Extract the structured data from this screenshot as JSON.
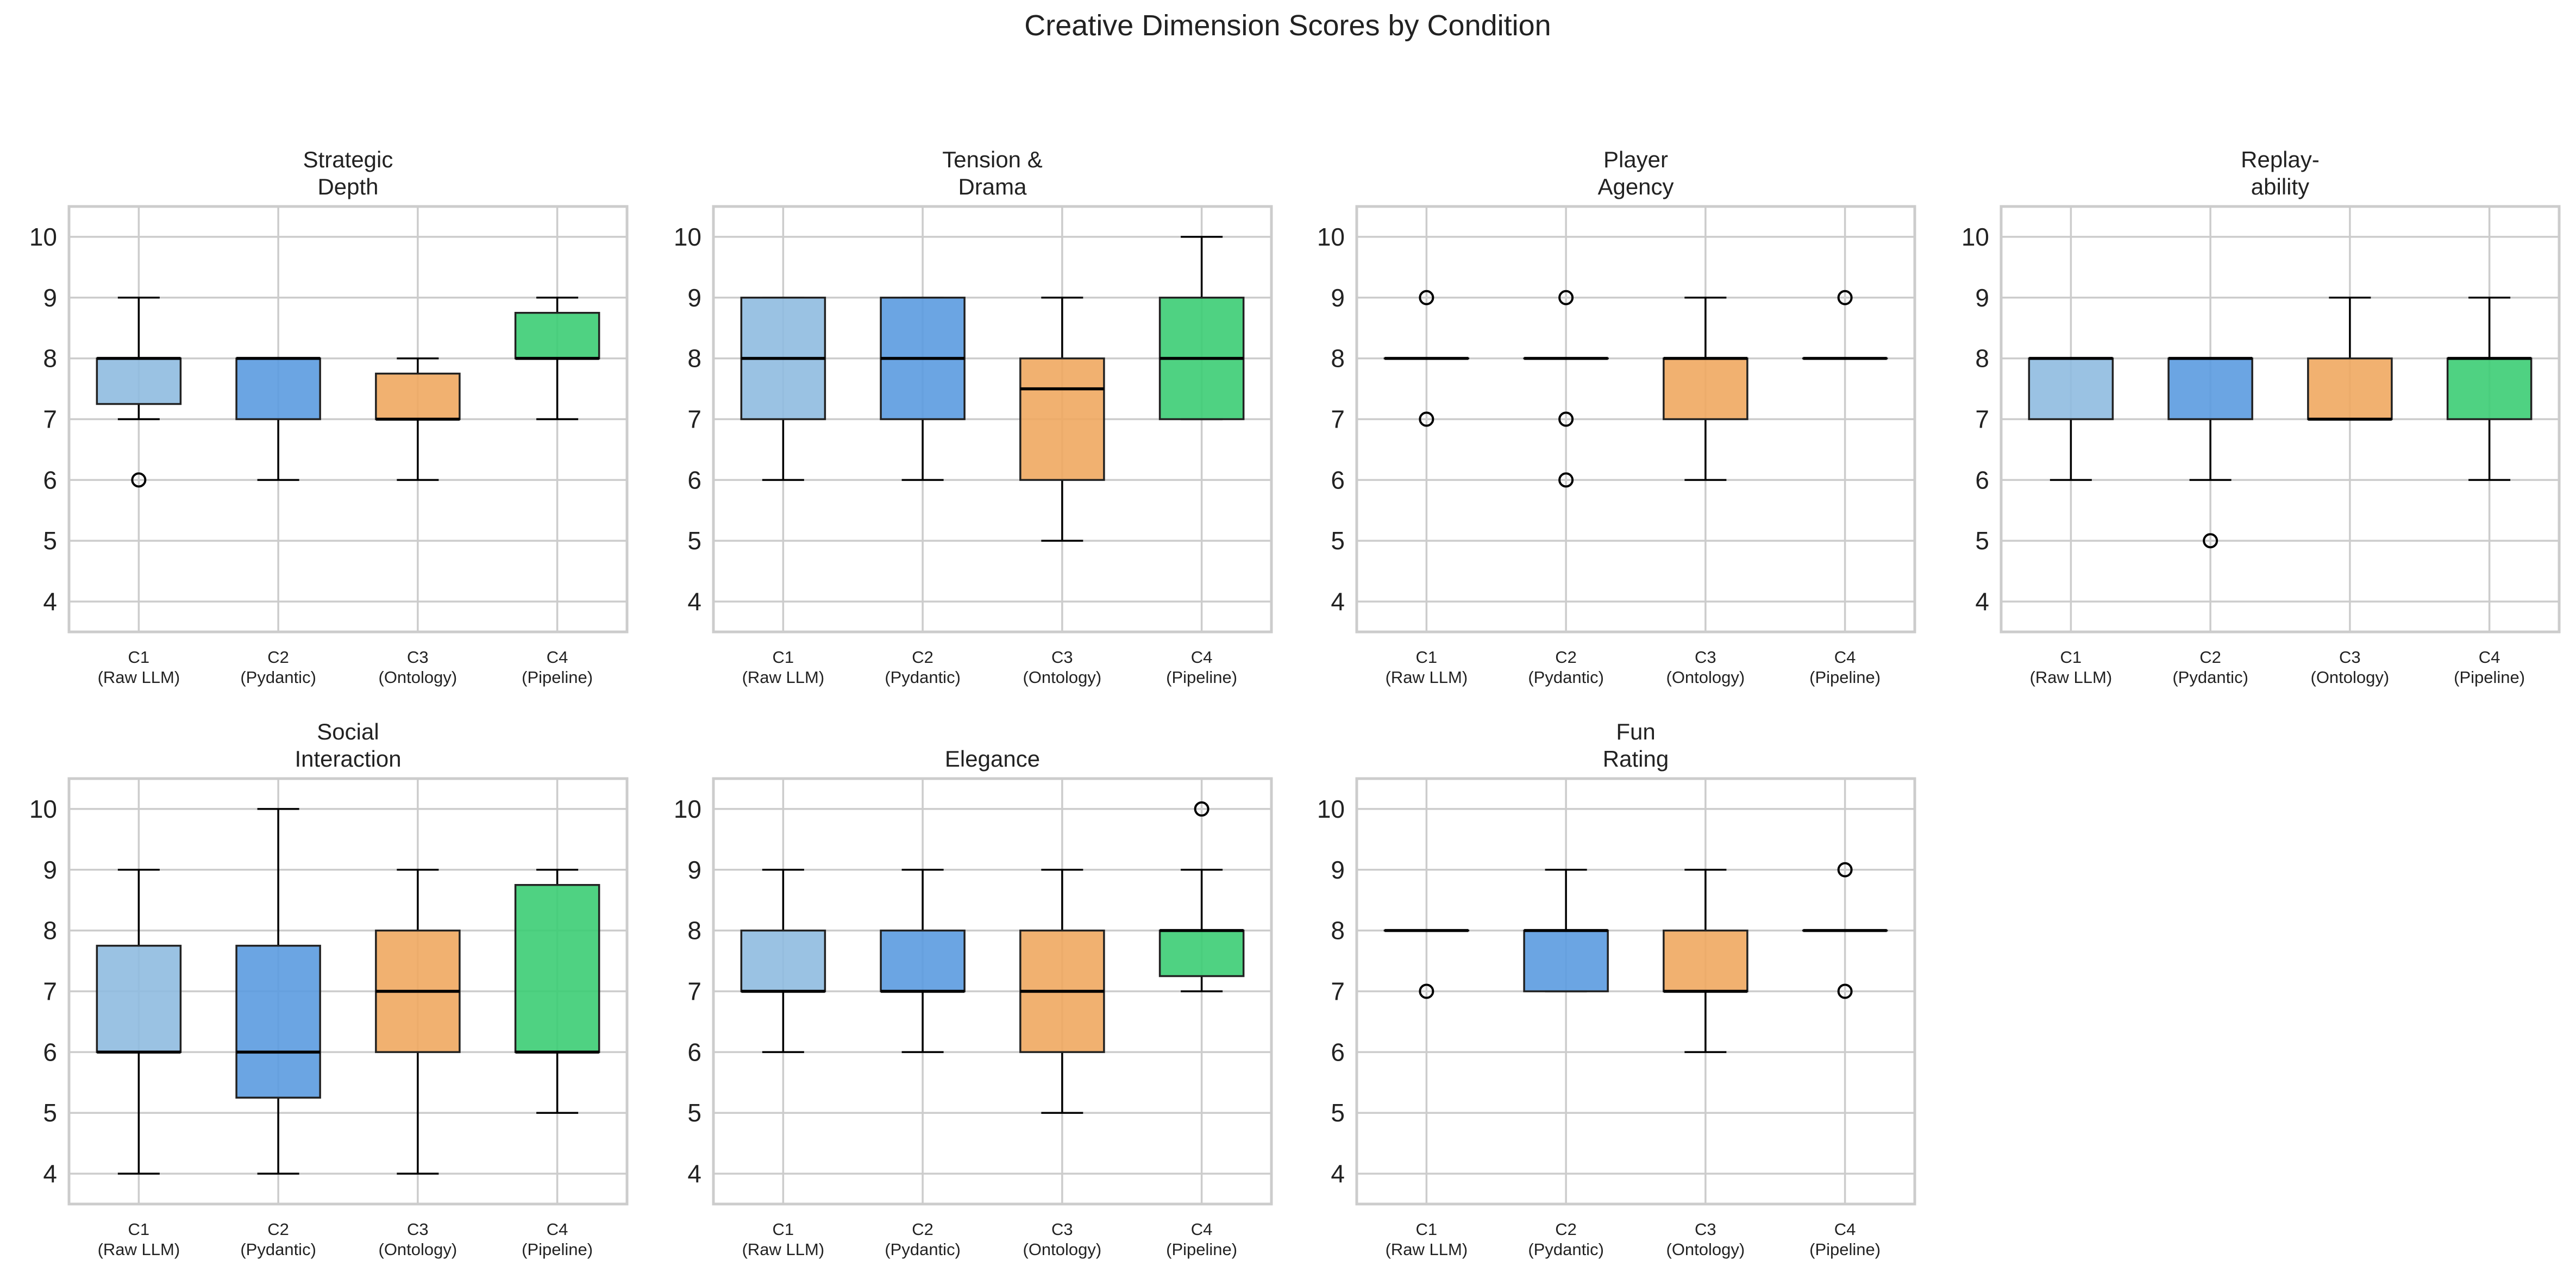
{
  "figure_title": "Creative Dimension Scores by Condition",
  "colors": {
    "C1": "#8fbbe0",
    "C2": "#5b9be0",
    "C3": "#f0a860",
    "C4": "#3ccd74",
    "grid": "#cccccc",
    "frame": "#cccccc",
    "median": "#000000",
    "whisker": "#000000",
    "text": "#222222"
  },
  "chart_data": [
    {
      "type": "boxplot",
      "title_lines": [
        "Strategic",
        "Depth"
      ],
      "ylim": [
        3.5,
        10.5
      ],
      "yticks": [
        4,
        5,
        6,
        7,
        8,
        9,
        10
      ],
      "categories": [
        {
          "line1": "C1",
          "line2": "(Raw LLM)"
        },
        {
          "line1": "C2",
          "line2": "(Pydantic)"
        },
        {
          "line1": "C3",
          "line2": "(Ontology)"
        },
        {
          "line1": "C4",
          "line2": "(Pipeline)"
        }
      ],
      "boxes": [
        {
          "q1": 7.25,
          "median": 8,
          "q3": 8,
          "whislo": 7,
          "whishi": 9,
          "fliers": [
            6
          ]
        },
        {
          "q1": 7,
          "median": 8,
          "q3": 8,
          "whislo": 6,
          "whishi": 8,
          "fliers": []
        },
        {
          "q1": 7,
          "median": 7,
          "q3": 7.75,
          "whislo": 6,
          "whishi": 8,
          "fliers": []
        },
        {
          "q1": 8,
          "median": 8,
          "q3": 8.75,
          "whislo": 7,
          "whishi": 9,
          "fliers": []
        }
      ]
    },
    {
      "type": "boxplot",
      "title_lines": [
        "Tension &",
        "Drama"
      ],
      "ylim": [
        3.5,
        10.5
      ],
      "yticks": [
        4,
        5,
        6,
        7,
        8,
        9,
        10
      ],
      "categories": [
        {
          "line1": "C1",
          "line2": "(Raw LLM)"
        },
        {
          "line1": "C2",
          "line2": "(Pydantic)"
        },
        {
          "line1": "C3",
          "line2": "(Ontology)"
        },
        {
          "line1": "C4",
          "line2": "(Pipeline)"
        }
      ],
      "boxes": [
        {
          "q1": 7,
          "median": 8,
          "q3": 9,
          "whislo": 6,
          "whishi": 9,
          "fliers": []
        },
        {
          "q1": 7,
          "median": 8,
          "q3": 9,
          "whislo": 6,
          "whishi": 9,
          "fliers": []
        },
        {
          "q1": 6,
          "median": 7.5,
          "q3": 8,
          "whislo": 5,
          "whishi": 9,
          "fliers": []
        },
        {
          "q1": 7,
          "median": 8,
          "q3": 9,
          "whislo": 7,
          "whishi": 10,
          "fliers": []
        }
      ]
    },
    {
      "type": "boxplot",
      "title_lines": [
        "Player",
        "Agency"
      ],
      "ylim": [
        3.5,
        10.5
      ],
      "yticks": [
        4,
        5,
        6,
        7,
        8,
        9,
        10
      ],
      "categories": [
        {
          "line1": "C1",
          "line2": "(Raw LLM)"
        },
        {
          "line1": "C2",
          "line2": "(Pydantic)"
        },
        {
          "line1": "C3",
          "line2": "(Ontology)"
        },
        {
          "line1": "C4",
          "line2": "(Pipeline)"
        }
      ],
      "boxes": [
        {
          "q1": 8,
          "median": 8,
          "q3": 8,
          "whislo": 8,
          "whishi": 8,
          "fliers": [
            7,
            9
          ]
        },
        {
          "q1": 8,
          "median": 8,
          "q3": 8,
          "whislo": 8,
          "whishi": 8,
          "fliers": [
            6,
            7,
            9
          ]
        },
        {
          "q1": 7,
          "median": 8,
          "q3": 8,
          "whislo": 6,
          "whishi": 9,
          "fliers": []
        },
        {
          "q1": 8,
          "median": 8,
          "q3": 8,
          "whislo": 8,
          "whishi": 8,
          "fliers": [
            9
          ]
        }
      ]
    },
    {
      "type": "boxplot",
      "title_lines": [
        "Replay-",
        "ability"
      ],
      "ylim": [
        3.5,
        10.5
      ],
      "yticks": [
        4,
        5,
        6,
        7,
        8,
        9,
        10
      ],
      "categories": [
        {
          "line1": "C1",
          "line2": "(Raw LLM)"
        },
        {
          "line1": "C2",
          "line2": "(Pydantic)"
        },
        {
          "line1": "C3",
          "line2": "(Ontology)"
        },
        {
          "line1": "C4",
          "line2": "(Pipeline)"
        }
      ],
      "boxes": [
        {
          "q1": 7,
          "median": 8,
          "q3": 8,
          "whislo": 6,
          "whishi": 8,
          "fliers": []
        },
        {
          "q1": 7,
          "median": 8,
          "q3": 8,
          "whislo": 6,
          "whishi": 8,
          "fliers": [
            5
          ]
        },
        {
          "q1": 7,
          "median": 7,
          "q3": 8,
          "whislo": 7,
          "whishi": 9,
          "fliers": []
        },
        {
          "q1": 7,
          "median": 8,
          "q3": 8,
          "whislo": 6,
          "whishi": 9,
          "fliers": []
        }
      ]
    },
    {
      "type": "boxplot",
      "title_lines": [
        "Social",
        "Interaction"
      ],
      "ylim": [
        3.5,
        10.5
      ],
      "yticks": [
        4,
        5,
        6,
        7,
        8,
        9,
        10
      ],
      "categories": [
        {
          "line1": "C1",
          "line2": "(Raw LLM)"
        },
        {
          "line1": "C2",
          "line2": "(Pydantic)"
        },
        {
          "line1": "C3",
          "line2": "(Ontology)"
        },
        {
          "line1": "C4",
          "line2": "(Pipeline)"
        }
      ],
      "boxes": [
        {
          "q1": 6,
          "median": 6,
          "q3": 7.75,
          "whislo": 4,
          "whishi": 9,
          "fliers": []
        },
        {
          "q1": 5.25,
          "median": 6,
          "q3": 7.75,
          "whislo": 4,
          "whishi": 10,
          "fliers": []
        },
        {
          "q1": 6,
          "median": 7,
          "q3": 8,
          "whislo": 4,
          "whishi": 9,
          "fliers": []
        },
        {
          "q1": 6,
          "median": 6,
          "q3": 8.75,
          "whislo": 5,
          "whishi": 9,
          "fliers": []
        }
      ]
    },
    {
      "type": "boxplot",
      "title_lines": [
        "Elegance"
      ],
      "ylim": [
        3.5,
        10.5
      ],
      "yticks": [
        4,
        5,
        6,
        7,
        8,
        9,
        10
      ],
      "categories": [
        {
          "line1": "C1",
          "line2": "(Raw LLM)"
        },
        {
          "line1": "C2",
          "line2": "(Pydantic)"
        },
        {
          "line1": "C3",
          "line2": "(Ontology)"
        },
        {
          "line1": "C4",
          "line2": "(Pipeline)"
        }
      ],
      "boxes": [
        {
          "q1": 7,
          "median": 7,
          "q3": 8,
          "whislo": 6,
          "whishi": 9,
          "fliers": []
        },
        {
          "q1": 7,
          "median": 7,
          "q3": 8,
          "whislo": 6,
          "whishi": 9,
          "fliers": []
        },
        {
          "q1": 6,
          "median": 7,
          "q3": 8,
          "whislo": 5,
          "whishi": 9,
          "fliers": []
        },
        {
          "q1": 7.25,
          "median": 8,
          "q3": 8,
          "whislo": 7,
          "whishi": 9,
          "fliers": [
            10
          ]
        }
      ]
    },
    {
      "type": "boxplot",
      "title_lines": [
        "Fun",
        "Rating"
      ],
      "ylim": [
        3.5,
        10.5
      ],
      "yticks": [
        4,
        5,
        6,
        7,
        8,
        9,
        10
      ],
      "categories": [
        {
          "line1": "C1",
          "line2": "(Raw LLM)"
        },
        {
          "line1": "C2",
          "line2": "(Pydantic)"
        },
        {
          "line1": "C3",
          "line2": "(Ontology)"
        },
        {
          "line1": "C4",
          "line2": "(Pipeline)"
        }
      ],
      "boxes": [
        {
          "q1": 8,
          "median": 8,
          "q3": 8,
          "whislo": 8,
          "whishi": 8,
          "fliers": [
            7
          ]
        },
        {
          "q1": 7,
          "median": 8,
          "q3": 8,
          "whislo": 7,
          "whishi": 9,
          "fliers": []
        },
        {
          "q1": 7,
          "median": 7,
          "q3": 8,
          "whislo": 6,
          "whishi": 9,
          "fliers": []
        },
        {
          "q1": 8,
          "median": 8,
          "q3": 8,
          "whislo": 8,
          "whishi": 8,
          "fliers": [
            7,
            9
          ]
        }
      ]
    }
  ]
}
